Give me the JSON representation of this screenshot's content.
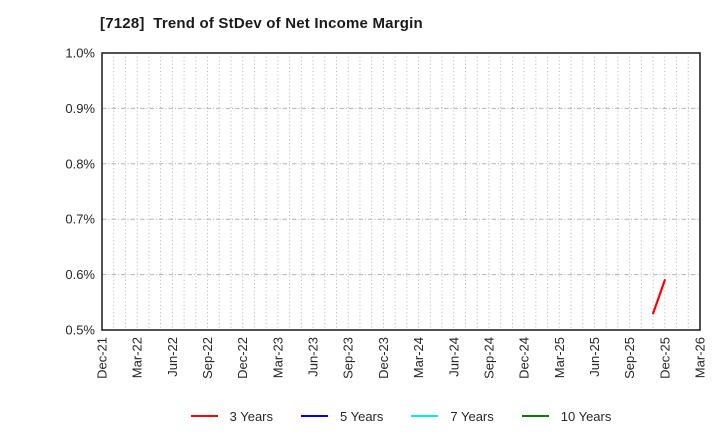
{
  "chart_data": {
    "type": "line",
    "title": "[7128]  Trend of StDev of Net Income Margin",
    "ylim": [
      0.5,
      1.0
    ],
    "yticks": [
      0.5,
      0.6,
      0.7,
      0.8,
      0.9,
      1.0
    ],
    "ytick_labels": [
      "0.5%",
      "0.6%",
      "0.7%",
      "0.8%",
      "0.9%",
      "1.0%"
    ],
    "y_unit": "percent",
    "x_axis": {
      "start_label": "Dec-21",
      "end_label": "Mar-26",
      "months_total": 51,
      "tick_every_months": 3,
      "tick_labels": [
        "Dec-21",
        "Mar-22",
        "Jun-22",
        "Sep-22",
        "Dec-22",
        "Mar-23",
        "Jun-23",
        "Sep-23",
        "Dec-23",
        "Mar-24",
        "Jun-24",
        "Sep-24",
        "Dec-24",
        "Mar-25",
        "Jun-25",
        "Sep-25",
        "Dec-25",
        "Mar-26"
      ]
    },
    "grid": {
      "vertical": "monthly dotted",
      "horizontal": "dashed at each 0.1% tick"
    },
    "legend_position": "bottom center",
    "series": [
      {
        "name": "3 Years",
        "color": "#ff0000",
        "points": [
          {
            "x_label": "Nov-25",
            "x_month": 47,
            "y_pct": 0.53
          },
          {
            "x_label": "Dec-25",
            "x_month": 48,
            "y_pct": 0.59
          }
        ]
      },
      {
        "name": "5 Years",
        "color": "#0000ff",
        "points": []
      },
      {
        "name": "7 Years",
        "color": "#00eaea",
        "points": []
      },
      {
        "name": "10 Years",
        "color": "#008000",
        "points": []
      }
    ]
  }
}
